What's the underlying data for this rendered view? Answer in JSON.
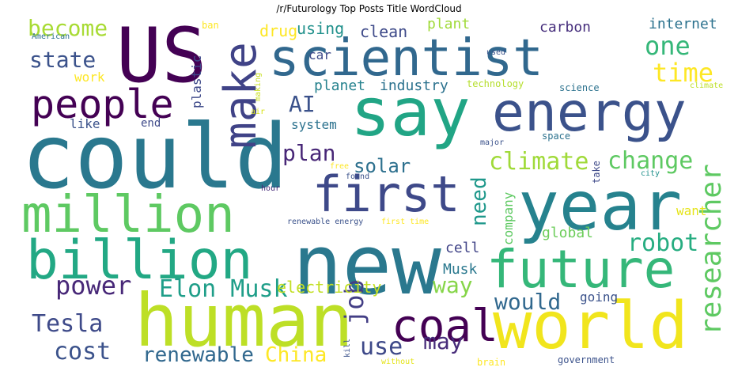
{
  "title": "/r/Futurology Top Posts Title WordCloud",
  "colors": {
    "background": "#ffffff",
    "palette": "viridis",
    "dark_purple": "#440154",
    "purple": "#472c7a",
    "indigo": "#3b518b",
    "blue": "#2c728e",
    "teal": "#21918c",
    "green_teal": "#28ae80",
    "green": "#5ec962",
    "lime": "#addc30",
    "yellow": "#fde725"
  },
  "words": [
    {
      "text": "US",
      "color": "#440154"
    },
    {
      "text": "scientist",
      "color": "#31688e"
    },
    {
      "text": "say",
      "color": "#21a585"
    },
    {
      "text": "energy",
      "color": "#3b528b"
    },
    {
      "text": "could",
      "color": "#2a788e"
    },
    {
      "text": "people",
      "color": "#440154"
    },
    {
      "text": "make",
      "color": "#404387"
    },
    {
      "text": "first",
      "color": "#3e4989"
    },
    {
      "text": "year",
      "color": "#26828e"
    },
    {
      "text": "million",
      "color": "#5ec962"
    },
    {
      "text": "new",
      "color": "#2a788e"
    },
    {
      "text": "billion",
      "color": "#22a884"
    },
    {
      "text": "future",
      "color": "#35b779"
    },
    {
      "text": "human",
      "color": "#bddf26"
    },
    {
      "text": "world",
      "color": "#f1e51d"
    },
    {
      "text": "coal",
      "color": "#440154"
    },
    {
      "text": "become",
      "color": "#a8db34"
    },
    {
      "text": "state",
      "color": "#3b528b"
    },
    {
      "text": "AI",
      "color": "#3b528b"
    },
    {
      "text": "plan",
      "color": "#482777"
    },
    {
      "text": "solar",
      "color": "#2d708e"
    },
    {
      "text": "climate",
      "color": "#a0da39"
    },
    {
      "text": "change",
      "color": "#5ec962"
    },
    {
      "text": "one",
      "color": "#35b779"
    },
    {
      "text": "time",
      "color": "#fde725"
    },
    {
      "text": "need",
      "color": "#1f988b"
    },
    {
      "text": "researcher",
      "color": "#5ec962"
    },
    {
      "text": "robot",
      "color": "#27ad81"
    },
    {
      "text": "power",
      "color": "#482878"
    },
    {
      "text": "Elon Musk",
      "color": "#1f9e89"
    },
    {
      "text": "way",
      "color": "#86d549"
    },
    {
      "text": "would",
      "color": "#31688e"
    },
    {
      "text": "Tesla",
      "color": "#3e4a89"
    },
    {
      "text": "cost",
      "color": "#3b528b"
    },
    {
      "text": "job",
      "color": "#433e85"
    },
    {
      "text": "use",
      "color": "#3e4989"
    },
    {
      "text": "may",
      "color": "#472c7a"
    },
    {
      "text": "renewable",
      "color": "#31688e"
    },
    {
      "text": "China",
      "color": "#fde725"
    },
    {
      "text": "electricity",
      "color": "#c2df23"
    },
    {
      "text": "cell",
      "color": "#404387"
    },
    {
      "text": "Musk",
      "color": "#2a788e"
    },
    {
      "text": "going",
      "color": "#3b528b"
    },
    {
      "text": "global",
      "color": "#6ccd5a"
    },
    {
      "text": "want",
      "color": "#e5e419"
    },
    {
      "text": "company",
      "color": "#5ec962"
    },
    {
      "text": "carbon",
      "color": "#472f7d"
    },
    {
      "text": "internet",
      "color": "#2c728e"
    },
    {
      "text": "drug",
      "color": "#fde725"
    },
    {
      "text": "using",
      "color": "#21918c"
    },
    {
      "text": "clean",
      "color": "#3e4a89"
    },
    {
      "text": "plant",
      "color": "#a0da39"
    },
    {
      "text": "plastic",
      "color": "#3e4989"
    },
    {
      "text": "car",
      "color": "#3e4a89"
    },
    {
      "text": "work",
      "color": "#fde725"
    },
    {
      "text": "planet",
      "color": "#26828e"
    },
    {
      "text": "industry",
      "color": "#2c728e"
    },
    {
      "text": "technology",
      "color": "#b5de2b"
    },
    {
      "text": "science",
      "color": "#2c728e"
    },
    {
      "text": "system",
      "color": "#2c728e"
    },
    {
      "text": "end",
      "color": "#3e4a89"
    },
    {
      "text": "like",
      "color": "#3b528b"
    },
    {
      "text": "ban",
      "color": "#fde725"
    },
    {
      "text": "American",
      "color": "#2c728e"
    },
    {
      "text": "used",
      "color": "#3b528b"
    },
    {
      "text": "climate",
      "color": "#bddf26"
    },
    {
      "text": "making",
      "color": "#c8e020"
    },
    {
      "text": "air",
      "color": "#d8e219"
    },
    {
      "text": "major",
      "color": "#3b528b"
    },
    {
      "text": "space",
      "color": "#2c728e"
    },
    {
      "text": "free",
      "color": "#fde725"
    },
    {
      "text": "found",
      "color": "#3b528b"
    },
    {
      "text": "take",
      "color": "#3e4989"
    },
    {
      "text": "city",
      "color": "#21918c"
    },
    {
      "text": "hour",
      "color": "#472c7a"
    },
    {
      "text": "renewable energy",
      "color": "#3b528b"
    },
    {
      "text": "first time",
      "color": "#fde725"
    },
    {
      "text": "kill",
      "color": "#3b528b"
    },
    {
      "text": "without",
      "color": "#e5e419"
    },
    {
      "text": "brain",
      "color": "#fde725"
    },
    {
      "text": "government",
      "color": "#3b528b"
    }
  ]
}
